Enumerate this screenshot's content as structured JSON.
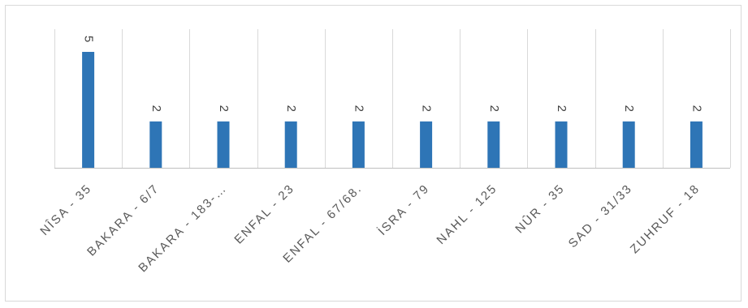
{
  "chart_data": {
    "type": "bar",
    "categories": [
      "NÎSA - 35",
      "BAKARA - 6/7",
      "BAKARA - 183-…",
      "ENFAL - 23",
      "ENFAL - 67/68.",
      "İSRA - 79",
      "NAHL - 125",
      "NÛR - 35",
      "SAD - 31/33",
      "ZUHRUF - 18"
    ],
    "values": [
      5,
      2,
      2,
      2,
      2,
      2,
      2,
      2,
      2,
      2
    ],
    "ylim": [
      0,
      5
    ],
    "grid": "vertical",
    "legend": "none",
    "data_labels": true,
    "title": "",
    "xlabel": "",
    "ylabel": "",
    "colors": {
      "bar": "#2e75b6",
      "grid": "#d9d9d9",
      "axis": "#bfbfbf",
      "text": "#595959"
    }
  }
}
